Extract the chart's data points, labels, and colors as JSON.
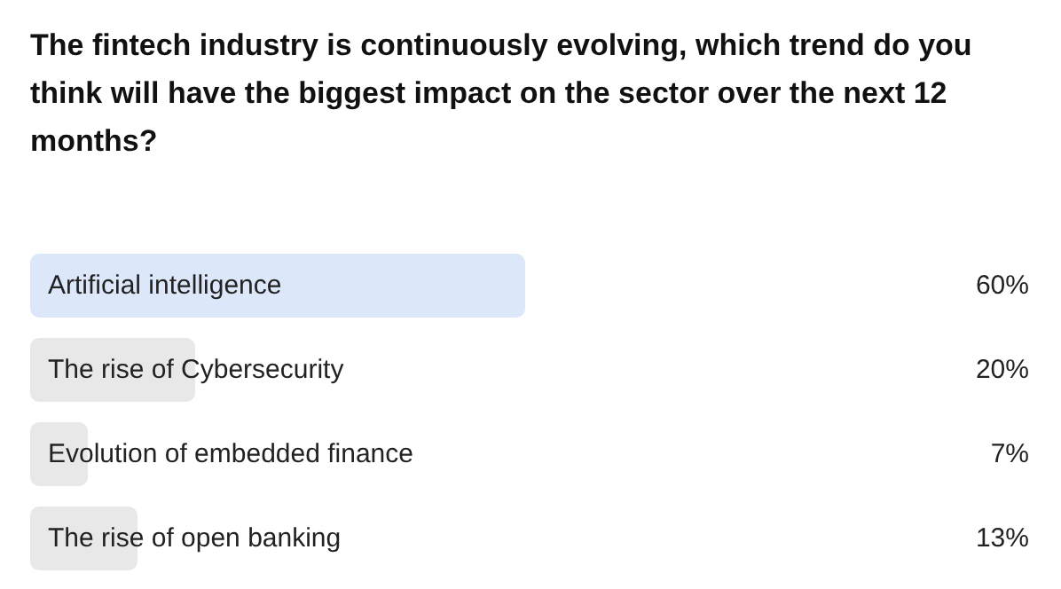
{
  "chart_data": {
    "type": "bar",
    "orientation": "horizontal",
    "title": "The fintech industry is continuously evolving, which trend do you think will have the biggest impact on the sector over the next 12 months?",
    "categories": [
      "Artificial intelligence",
      "The rise of Cybersecurity",
      "Evolution of embedded finance",
      "The rise of open banking"
    ],
    "values": [
      60,
      20,
      7,
      13
    ],
    "value_labels": [
      "60%",
      "20%",
      "7%",
      "13%"
    ],
    "colors": [
      "#dce8f9",
      "#e8e8e8",
      "#e8e8e8",
      "#e8e8e8"
    ]
  }
}
